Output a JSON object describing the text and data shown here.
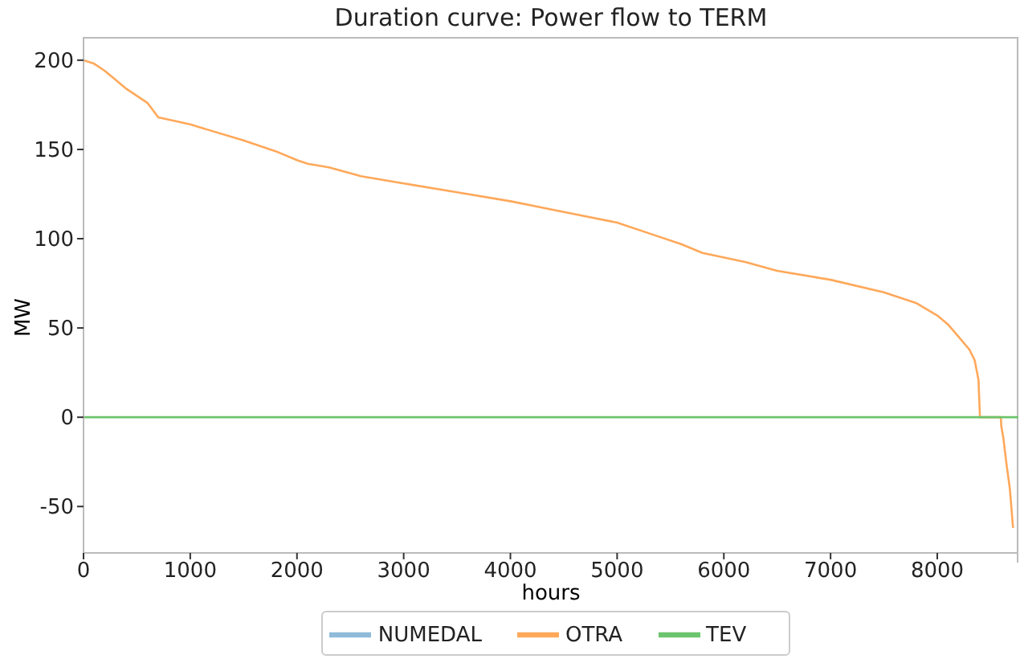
{
  "chart_data": {
    "type": "line",
    "title": "Duration curve: Power flow to TERM",
    "xlabel": "hours",
    "ylabel": "MW",
    "xlim": [
      0,
      8760
    ],
    "xticks": [
      0,
      1000,
      2000,
      3000,
      4000,
      5000,
      6000,
      7000,
      8000
    ],
    "ylim": [
      -76,
      213
    ],
    "yticks": [
      -50,
      0,
      50,
      100,
      150,
      200
    ],
    "grid": false,
    "legend": "bottom",
    "marker": "none",
    "line_style": "solid",
    "series": [
      {
        "name": "NUMEDAL",
        "color": "#8fbbd9"
      },
      {
        "name": "OTRA",
        "color": "#ffa85a",
        "x": [
          0,
          100,
          200,
          300,
          400,
          600,
          650,
          700,
          1000,
          1500,
          1800,
          2000,
          2100,
          2300,
          2600,
          3000,
          3500,
          4000,
          4500,
          5000,
          5300,
          5600,
          5800,
          6200,
          6500,
          7000,
          7500,
          7800,
          8000,
          8100,
          8200,
          8300,
          8350,
          8386,
          8400,
          8595,
          8600,
          8620,
          8650,
          8680,
          8710
        ],
        "values": [
          200,
          198,
          194,
          189,
          184,
          176,
          172,
          168,
          164,
          155,
          149,
          144,
          142,
          140,
          135,
          131,
          126,
          121,
          115,
          109,
          103,
          97,
          92,
          87,
          82,
          77,
          70,
          64,
          57,
          52,
          45,
          38,
          32,
          21,
          0,
          0,
          -5,
          -12,
          -27,
          -40,
          -62
        ]
      },
      {
        "name": "TEV",
        "color": "#6cc46c",
        "x": [
          0,
          8760
        ],
        "values": [
          0,
          0
        ]
      }
    ]
  }
}
